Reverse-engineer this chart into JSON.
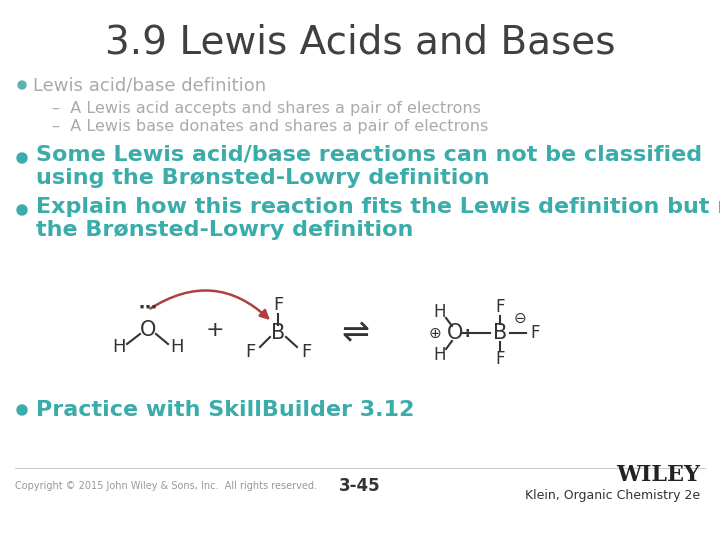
{
  "title": "3.9 Lewis Acids and Bases",
  "bg_color": "#ffffff",
  "title_color": "#404040",
  "bullet1_color": "#5ab4b0",
  "text1_color": "#aaaaaa",
  "teal_color": "#3aacaa",
  "dark_color": "#404040",
  "red_arrow_color": "#b04040",
  "bullet1": "Lewis acid/base definition",
  "sub1": "A Lewis acid accepts and shares a pair of electrons",
  "sub2": "A Lewis base donates and shares a pair of electrons",
  "bullet2_line1": "Some Lewis acid/base reactions can not be classified",
  "bullet2_line2": "using the Brønsted-Lowry definition",
  "bullet3_line1": "Explain how this reaction fits the Lewis definition but not",
  "bullet3_line2": "the Brønsted-Lowry definition",
  "bullet4": "Practice with SkillBuilder 3.12",
  "footer_left": "Copyright © 2015 John Wiley & Sons, Inc.  All rights reserved.",
  "footer_center": "3-45",
  "footer_right_top": "WILEY",
  "footer_right_bottom": "Klein, Organic Chemistry 2e"
}
